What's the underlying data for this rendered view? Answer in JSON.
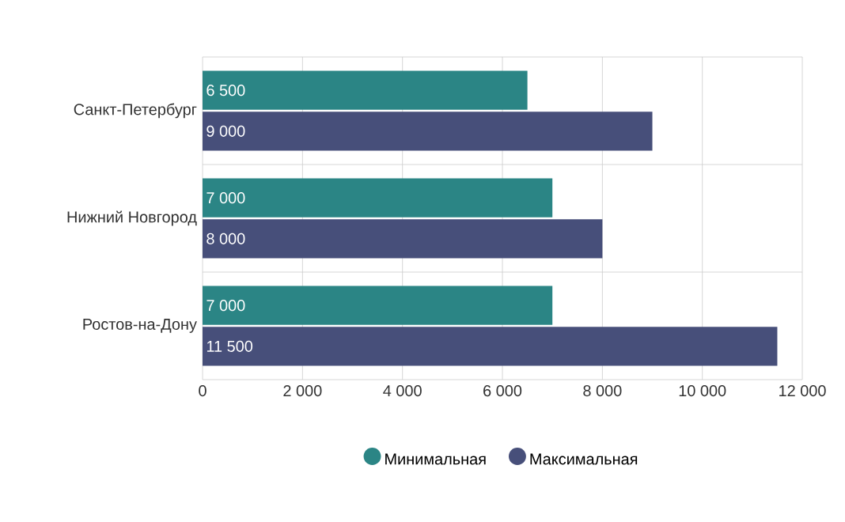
{
  "chart_data": {
    "type": "bar",
    "orientation": "horizontal",
    "categories": [
      "Санкт-Петербург",
      "Нижний Новгород",
      "Ростов-на-Дону"
    ],
    "series": [
      {
        "name": "Минимальная",
        "color": "#2b8585",
        "values": [
          6500,
          7000,
          7000
        ],
        "value_labels": [
          "6 500",
          "7 000",
          "7 000"
        ]
      },
      {
        "name": "Максимальная",
        "color": "#474f7a",
        "values": [
          9000,
          8000,
          11500
        ],
        "value_labels": [
          "9 000",
          "8 000",
          "11 500"
        ]
      }
    ],
    "xlim": [
      0,
      12000
    ],
    "xticks": [
      0,
      {
        "value": 2000,
        "label": "2 000"
      },
      {
        "value": 4000,
        "label": "4 000"
      },
      {
        "value": 6000,
        "label": "6 000"
      },
      {
        "value": 8000,
        "label": "8 000"
      },
      {
        "value": 10000,
        "label": "10 000"
      },
      {
        "value": 12000,
        "label": "12 000"
      }
    ],
    "grid": true,
    "legend": "bottom"
  }
}
